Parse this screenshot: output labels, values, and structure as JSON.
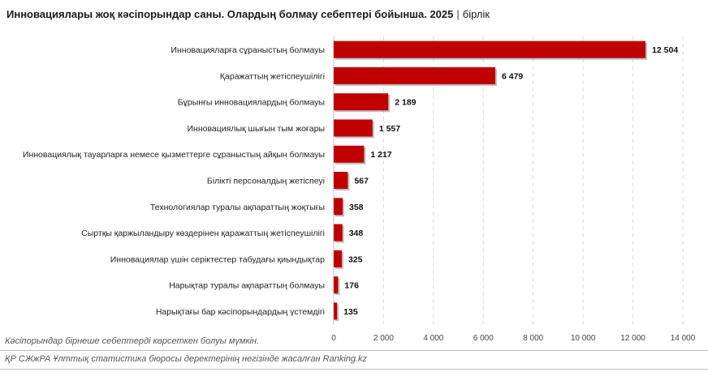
{
  "header": {
    "title": "Инновациялары жоқ кәсіпорындар саны. Олардың болмау себептері бойынша. 2025",
    "separator": "|",
    "unit": "бірлік"
  },
  "footer": {
    "note": "Кәсіпорындар бірнеше себептерді көрсеткен болуы мүмкін.",
    "source": "ҚР СЖжРА Ұлттық статистика бюросы деректерінің негізінде жасалған Ranking.kz"
  },
  "colors": {
    "bar": "#c00000",
    "bar_shadow": "#8a8a8a",
    "grid": "#d9d9d9"
  },
  "chart_data": {
    "type": "bar",
    "orientation": "horizontal",
    "categories": [
      "Инновацияларға сұраныстың болмауы",
      "Қаражаттың жетіспеушілігі",
      "Бұрынғы инновациялардың болмауы",
      "Инновациялық шығын тым жоғары",
      "Инновациялық тауарларға немесе қызметтерге сұраныстың айқын болмауы",
      "Білікті персоналдың жетіспеуі",
      "Технологиялар туралы ақпараттың жоқтығы",
      "Сыртқы қаржыландыру көздерінен қаражаттың жетіспеушілігі",
      "Инновациялар үшін серіктестер табудағы қиындықтар",
      "Нарықтар туралы ақпараттың болмауы",
      "Нарықтағы бар кәсіпорындардың үстемдігі"
    ],
    "values": [
      12504,
      6479,
      2189,
      1557,
      1217,
      567,
      358,
      348,
      325,
      176,
      135
    ],
    "value_labels": [
      "12 504",
      "6 479",
      "2 189",
      "1 557",
      "1 217",
      "567",
      "358",
      "348",
      "325",
      "176",
      "135"
    ],
    "xlim": [
      0,
      14000
    ],
    "xticks": [
      0,
      2000,
      4000,
      6000,
      8000,
      10000,
      12000,
      14000
    ],
    "xtick_labels": [
      "0",
      "2 000",
      "4 000",
      "6 000",
      "8 000",
      "10 000",
      "12 000",
      "14 000"
    ],
    "grid": true,
    "legend": false
  }
}
